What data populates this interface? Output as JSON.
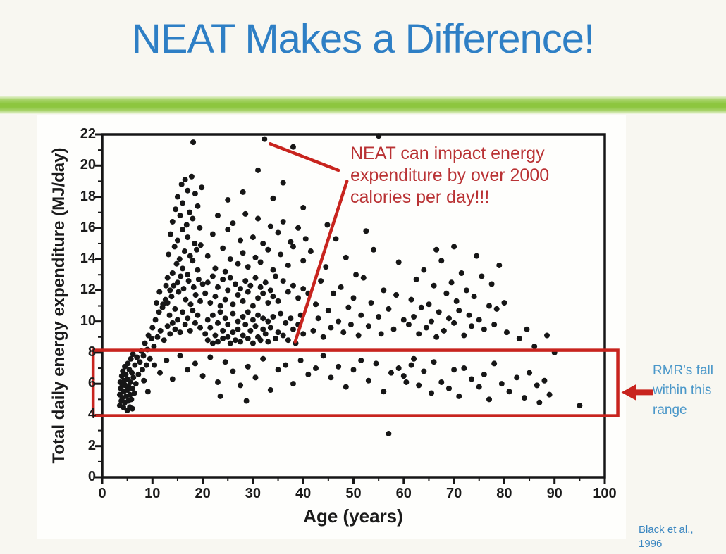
{
  "slide": {
    "title": "NEAT Makes a Difference!",
    "citation": "Black et al.,\n1996",
    "colors": {
      "title_blue": "#2e7fc5",
      "accent_green": "#8dc63f",
      "citation_blue": "#3a86c0",
      "background": "#f8f7f1"
    }
  },
  "annotations": {
    "neat_note": {
      "text": "NEAT can impact energy\nexpenditure by over 2000\ncalories per day!!!",
      "color": "#b93234"
    },
    "rmr_note": {
      "text": "RMR's fall\nwithin this\nrange",
      "color": "#4a97c9"
    }
  },
  "chart_data": {
    "type": "scatter",
    "title": "",
    "xlabel": "Age (years)",
    "ylabel": "Total daily energy expenditure (MJ/day)",
    "xlim": [
      0,
      100
    ],
    "ylim": [
      0,
      22
    ],
    "x_ticks": [
      0,
      10,
      20,
      30,
      40,
      50,
      60,
      70,
      80,
      90,
      100
    ],
    "y_ticks": [
      0,
      2,
      4,
      6,
      8,
      10,
      12,
      14,
      16,
      18,
      20,
      22
    ],
    "grid": false,
    "point_color": "#161616",
    "shape_red": "#c8241e",
    "highlight_box": {
      "x_min": -1.8,
      "x_max": 102.6,
      "y_min": 3.95,
      "y_max": 8.15,
      "arrow_y": 5.45
    },
    "leader_lines": [
      {
        "from": [
          33.4,
          21.4
        ],
        "to": [
          47.0,
          19.7
        ]
      },
      {
        "from": [
          48.7,
          19.0
        ],
        "to": [
          38.4,
          8.7
        ]
      }
    ],
    "points": [
      [
        3.5,
        4.6
      ],
      [
        3.5,
        5.3
      ],
      [
        3.6,
        6.1
      ],
      [
        3.7,
        5.7
      ],
      [
        3.8,
        4.9
      ],
      [
        3.9,
        6.5
      ],
      [
        4,
        5.1
      ],
      [
        4,
        5.9
      ],
      [
        4.1,
        6.8
      ],
      [
        4.2,
        4.5
      ],
      [
        4.3,
        5.5
      ],
      [
        4.4,
        6.2
      ],
      [
        4.5,
        4.8
      ],
      [
        4.5,
        7.1
      ],
      [
        4.6,
        5.9
      ],
      [
        4.7,
        6.6
      ],
      [
        4.8,
        5.2
      ],
      [
        5,
        4.3
      ],
      [
        5,
        5.6
      ],
      [
        5,
        6.3
      ],
      [
        5.1,
        7.3
      ],
      [
        5.2,
        4.9
      ],
      [
        5.3,
        5.8
      ],
      [
        5.4,
        6.9
      ],
      [
        5.5,
        4.5
      ],
      [
        5.5,
        5.3
      ],
      [
        5.6,
        6.1
      ],
      [
        5.7,
        7.6
      ],
      [
        5.8,
        5.0
      ],
      [
        5.9,
        6.7
      ],
      [
        6,
        4.4
      ],
      [
        6,
        5.7
      ],
      [
        6.1,
        7.9
      ],
      [
        6.2,
        6.4
      ],
      [
        6.4,
        5.4
      ],
      [
        6.5,
        7.2
      ],
      [
        6.7,
        6.0
      ],
      [
        6.9,
        7.7
      ],
      [
        7.2,
        6.6
      ],
      [
        7.5,
        7.4
      ],
      [
        7.8,
        8.1
      ],
      [
        8,
        6.9
      ],
      [
        8.2,
        7.8
      ],
      [
        8.5,
        8.6
      ],
      [
        8.8,
        7.2
      ],
      [
        9,
        8.2
      ],
      [
        9.2,
        9.1
      ],
      [
        9.5,
        7.6
      ],
      [
        9.8,
        8.9
      ],
      [
        10,
        9.6
      ],
      [
        10.3,
        8.4
      ],
      [
        10.6,
        10.1
      ],
      [
        11,
        9.0
      ],
      [
        11.3,
        10.6
      ],
      [
        11.6,
        9.4
      ],
      [
        12,
        10.9
      ],
      [
        12.3,
        8.8
      ],
      [
        12.6,
        11.4
      ],
      [
        10.8,
        11.2
      ],
      [
        11.4,
        11.9
      ],
      [
        12.1,
        11.1
      ],
      [
        12.7,
        12.3
      ],
      [
        13,
        9.7
      ],
      [
        13,
        11.2
      ],
      [
        13,
        12.8
      ],
      [
        13.2,
        14.3
      ],
      [
        13.4,
        10.4
      ],
      [
        13.5,
        12.0
      ],
      [
        13.6,
        15.6
      ],
      [
        13.8,
        11.6
      ],
      [
        14,
        9.9
      ],
      [
        14,
        13.1
      ],
      [
        14,
        16.4
      ],
      [
        14.2,
        12.3
      ],
      [
        14.4,
        14.8
      ],
      [
        14.5,
        10.8
      ],
      [
        14.6,
        17.2
      ],
      [
        14.8,
        13.7
      ],
      [
        15,
        10.1
      ],
      [
        15,
        12.5
      ],
      [
        15,
        15.2
      ],
      [
        15,
        18.0
      ],
      [
        15.2,
        11.9
      ],
      [
        15.4,
        14.0
      ],
      [
        15.5,
        16.8
      ],
      [
        15.6,
        12.9
      ],
      [
        15.8,
        18.8
      ],
      [
        16,
        10.6
      ],
      [
        16,
        13.4
      ],
      [
        16,
        15.9
      ],
      [
        16,
        17.6
      ],
      [
        16.2,
        12.1
      ],
      [
        16.4,
        14.5
      ],
      [
        16.5,
        19.1
      ],
      [
        16.6,
        11.4
      ],
      [
        16.8,
        16.2
      ],
      [
        17,
        10.2
      ],
      [
        17,
        13.0
      ],
      [
        17,
        15.4
      ],
      [
        17,
        18.4
      ],
      [
        17.2,
        12.6
      ],
      [
        17.4,
        17.0
      ],
      [
        17.5,
        14.2
      ],
      [
        17.6,
        11.1
      ],
      [
        17.8,
        19.3
      ],
      [
        18,
        10.7
      ],
      [
        18,
        13.9
      ],
      [
        18,
        16.6
      ],
      [
        18.2,
        12.2
      ],
      [
        18.4,
        15.0
      ],
      [
        18.5,
        18.2
      ],
      [
        18.6,
        11.7
      ],
      [
        18.8,
        14.6
      ],
      [
        19,
        10.4
      ],
      [
        19,
        13.3
      ],
      [
        19,
        17.4
      ],
      [
        19.2,
        12.7
      ],
      [
        19.4,
        16.0
      ],
      [
        19.5,
        11.3
      ],
      [
        19.6,
        14.9
      ],
      [
        19.8,
        18.6
      ],
      [
        20,
        12.4
      ],
      [
        13.5,
        9.2
      ],
      [
        14.5,
        9.5
      ],
      [
        15.5,
        9.3
      ],
      [
        16.5,
        9.8
      ],
      [
        17.5,
        9.4
      ],
      [
        18.5,
        9.9
      ],
      [
        19.5,
        9.6
      ],
      [
        20.5,
        9.2
      ],
      [
        21,
        8.8
      ],
      [
        21,
        10.1
      ],
      [
        21.5,
        9.6
      ],
      [
        22,
        8.6
      ],
      [
        22,
        10.4
      ],
      [
        22.5,
        9.1
      ],
      [
        23,
        9.9
      ],
      [
        23,
        8.7
      ],
      [
        23.5,
        10.6
      ],
      [
        24,
        9.4
      ],
      [
        24,
        8.9
      ],
      [
        24.5,
        10.2
      ],
      [
        25,
        9.0
      ],
      [
        25,
        9.8
      ],
      [
        25.5,
        8.6
      ],
      [
        26,
        10.5
      ],
      [
        26,
        9.3
      ],
      [
        26.5,
        8.8
      ],
      [
        27,
        10.0
      ],
      [
        27,
        9.5
      ],
      [
        27.5,
        8.7
      ],
      [
        28,
        10.3
      ],
      [
        28,
        9.1
      ],
      [
        28.5,
        9.8
      ],
      [
        29,
        8.9
      ],
      [
        29,
        10.6
      ],
      [
        29.5,
        9.4
      ],
      [
        30,
        8.6
      ],
      [
        30,
        10.1
      ],
      [
        30.5,
        9.7
      ],
      [
        31,
        9.0
      ],
      [
        31,
        10.4
      ],
      [
        31.5,
        8.8
      ],
      [
        32,
        9.5
      ],
      [
        32,
        10.2
      ],
      [
        32.5,
        9.2
      ],
      [
        33,
        8.7
      ],
      [
        33,
        10.0
      ],
      [
        33.5,
        9.6
      ],
      [
        34,
        10.3
      ],
      [
        34.5,
        8.9
      ],
      [
        35,
        9.3
      ],
      [
        35.5,
        10.5
      ],
      [
        36,
        9.1
      ],
      [
        36.5,
        9.9
      ],
      [
        37,
        8.8
      ],
      [
        37.5,
        10.2
      ],
      [
        38,
        9.5
      ],
      [
        38.5,
        8.6
      ],
      [
        39,
        9.8
      ],
      [
        39.5,
        10.4
      ],
      [
        40,
        9.2
      ],
      [
        20.5,
        11.8
      ],
      [
        21,
        12.5
      ],
      [
        21.5,
        11.2
      ],
      [
        22,
        12.9
      ],
      [
        22.5,
        11.6
      ],
      [
        23,
        12.2
      ],
      [
        23.5,
        11.0
      ],
      [
        24,
        12.7
      ],
      [
        24.5,
        11.4
      ],
      [
        25,
        12.0
      ],
      [
        25.5,
        12.8
      ],
      [
        26,
        11.1
      ],
      [
        26.5,
        12.4
      ],
      [
        27,
        11.7
      ],
      [
        27.5,
        12.1
      ],
      [
        28,
        11.3
      ],
      [
        28.5,
        12.6
      ],
      [
        29,
        11.9
      ],
      [
        29.5,
        12.3
      ],
      [
        30,
        11.0
      ],
      [
        30.5,
        12.8
      ],
      [
        31,
        11.5
      ],
      [
        31.5,
        12.2
      ],
      [
        32,
        11.8
      ],
      [
        32.5,
        12.5
      ],
      [
        33,
        11.2
      ],
      [
        33.5,
        12.0
      ],
      [
        34,
        11.6
      ],
      [
        34.5,
        12.9
      ],
      [
        35,
        11.3
      ],
      [
        36,
        12.6
      ],
      [
        37,
        11.9
      ],
      [
        38,
        12.3
      ],
      [
        39,
        11.5
      ],
      [
        40,
        12.1
      ],
      [
        41,
        11.8
      ],
      [
        21,
        14.2
      ],
      [
        22,
        15.6
      ],
      [
        22.5,
        13.4
      ],
      [
        23,
        16.8
      ],
      [
        24,
        14.7
      ],
      [
        24.5,
        13.2
      ],
      [
        25,
        15.9
      ],
      [
        25.5,
        14.0
      ],
      [
        26,
        16.3
      ],
      [
        27,
        13.7
      ],
      [
        27.5,
        15.2
      ],
      [
        28,
        14.4
      ],
      [
        28.5,
        16.9
      ],
      [
        29,
        13.5
      ],
      [
        30,
        15.4
      ],
      [
        30.5,
        14.1
      ],
      [
        31,
        16.6
      ],
      [
        31.5,
        13.8
      ],
      [
        32,
        15.0
      ],
      [
        33,
        14.6
      ],
      [
        33.5,
        16.1
      ],
      [
        34,
        13.3
      ],
      [
        35,
        15.7
      ],
      [
        35.5,
        14.3
      ],
      [
        36,
        16.4
      ],
      [
        37,
        13.6
      ],
      [
        37.5,
        15.1
      ],
      [
        38,
        14.8
      ],
      [
        39,
        16.0
      ],
      [
        40,
        13.9
      ],
      [
        40.5,
        15.3
      ],
      [
        41.5,
        14.5
      ],
      [
        18.1,
        21.5
      ],
      [
        32.3,
        21.7
      ],
      [
        38,
        21.2
      ],
      [
        55,
        21.9
      ],
      [
        31,
        19.7
      ],
      [
        36,
        18.9
      ],
      [
        28,
        18.3
      ],
      [
        34,
        17.9
      ],
      [
        40,
        17.3
      ],
      [
        25,
        17.8
      ],
      [
        8.3,
        6.2
      ],
      [
        9.1,
        5.5
      ],
      [
        10.4,
        7.2
      ],
      [
        11.5,
        6.7
      ],
      [
        12.8,
        7.5
      ],
      [
        14,
        6.3
      ],
      [
        15.5,
        7.8
      ],
      [
        17,
        6.9
      ],
      [
        18.5,
        7.3
      ],
      [
        20,
        6.5
      ],
      [
        21.5,
        7.7
      ],
      [
        23,
        6.1
      ],
      [
        24.5,
        7.4
      ],
      [
        26,
        6.8
      ],
      [
        27.5,
        5.9
      ],
      [
        29,
        7.1
      ],
      [
        30.5,
        6.4
      ],
      [
        32,
        7.6
      ],
      [
        33.5,
        5.6
      ],
      [
        35,
        6.9
      ],
      [
        36.5,
        7.2
      ],
      [
        38,
        6.0
      ],
      [
        39.5,
        7.5
      ],
      [
        41,
        6.6
      ],
      [
        42.5,
        7.0
      ],
      [
        44,
        7.8
      ],
      [
        23.5,
        5.2
      ],
      [
        28.7,
        4.9
      ],
      [
        42,
        9.4
      ],
      [
        42.5,
        11.1
      ],
      [
        43,
        10.2
      ],
      [
        43.5,
        12.6
      ],
      [
        44,
        9.0
      ],
      [
        44.5,
        13.5
      ],
      [
        45,
        10.7
      ],
      [
        45.5,
        9.6
      ],
      [
        46,
        11.8
      ],
      [
        46.5,
        15.3
      ],
      [
        47,
        10.0
      ],
      [
        47.5,
        12.2
      ],
      [
        48,
        9.3
      ],
      [
        48.5,
        14.1
      ],
      [
        49,
        10.9
      ],
      [
        49.5,
        9.8
      ],
      [
        50,
        11.5
      ],
      [
        50.5,
        13.0
      ],
      [
        51,
        9.1
      ],
      [
        51.5,
        10.4
      ],
      [
        52,
        12.8
      ],
      [
        53,
        9.7
      ],
      [
        53.5,
        11.2
      ],
      [
        54,
        14.6
      ],
      [
        55,
        10.3
      ],
      [
        55.5,
        9.2
      ],
      [
        56,
        12.0
      ],
      [
        57,
        10.8
      ],
      [
        58,
        9.5
      ],
      [
        58.5,
        11.7
      ],
      [
        59,
        13.8
      ],
      [
        60,
        10.1
      ],
      [
        44.8,
        16.2
      ],
      [
        52.5,
        15.8
      ],
      [
        45.5,
        6.4
      ],
      [
        47,
        7.1
      ],
      [
        48.5,
        5.8
      ],
      [
        50,
        6.9
      ],
      [
        51.5,
        7.5
      ],
      [
        53,
        6.2
      ],
      [
        54.5,
        7.3
      ],
      [
        56,
        5.5
      ],
      [
        57.5,
        6.7
      ],
      [
        59,
        7.0
      ],
      [
        60.5,
        6.1
      ],
      [
        62,
        7.6
      ],
      [
        61,
        9.8
      ],
      [
        61.5,
        11.4
      ],
      [
        62,
        10.3
      ],
      [
        62.5,
        12.7
      ],
      [
        63,
        9.2
      ],
      [
        63.5,
        10.9
      ],
      [
        64,
        13.3
      ],
      [
        64.5,
        9.6
      ],
      [
        65,
        11.1
      ],
      [
        65.5,
        10.0
      ],
      [
        66,
        12.3
      ],
      [
        66.5,
        9.0
      ],
      [
        67,
        10.6
      ],
      [
        67.5,
        13.9
      ],
      [
        68,
        9.4
      ],
      [
        68.5,
        11.8
      ],
      [
        69,
        10.2
      ],
      [
        69.5,
        12.5
      ],
      [
        70,
        9.9
      ],
      [
        70.5,
        11.3
      ],
      [
        71,
        10.7
      ],
      [
        71.5,
        13.1
      ],
      [
        72,
        9.1
      ],
      [
        72.5,
        12.0
      ],
      [
        73,
        10.4
      ],
      [
        73.5,
        9.7
      ],
      [
        74,
        11.6
      ],
      [
        74.5,
        14.2
      ],
      [
        75,
        10.1
      ],
      [
        75.5,
        12.9
      ],
      [
        76,
        9.5
      ],
      [
        77,
        11.0
      ],
      [
        77.5,
        12.4
      ],
      [
        78,
        9.8
      ],
      [
        78.5,
        10.8
      ],
      [
        79,
        13.6
      ],
      [
        80,
        11.2
      ],
      [
        80.5,
        9.3
      ],
      [
        70,
        14.8
      ],
      [
        66.5,
        14.6
      ],
      [
        60,
        6.5
      ],
      [
        61.5,
        7.2
      ],
      [
        63,
        5.9
      ],
      [
        64,
        6.8
      ],
      [
        65.5,
        5.4
      ],
      [
        66,
        7.4
      ],
      [
        67.5,
        6.1
      ],
      [
        69,
        5.7
      ],
      [
        70,
        6.9
      ],
      [
        71,
        5.2
      ],
      [
        72,
        7.0
      ],
      [
        73.5,
        6.3
      ],
      [
        75,
        5.8
      ],
      [
        76,
        6.6
      ],
      [
        77,
        5.0
      ],
      [
        78,
        7.3
      ],
      [
        79.5,
        6.0
      ],
      [
        81,
        5.5
      ],
      [
        82.5,
        6.4
      ],
      [
        84,
        5.1
      ],
      [
        85,
        6.7
      ],
      [
        86.5,
        5.9
      ],
      [
        88,
        6.2
      ],
      [
        83,
        8.9
      ],
      [
        84.5,
        9.5
      ],
      [
        86,
        8.4
      ],
      [
        88.5,
        9.1
      ],
      [
        90,
        8.0
      ],
      [
        95,
        4.6
      ],
      [
        87,
        4.8
      ],
      [
        89,
        5.3
      ],
      [
        57,
        2.8
      ]
    ]
  }
}
